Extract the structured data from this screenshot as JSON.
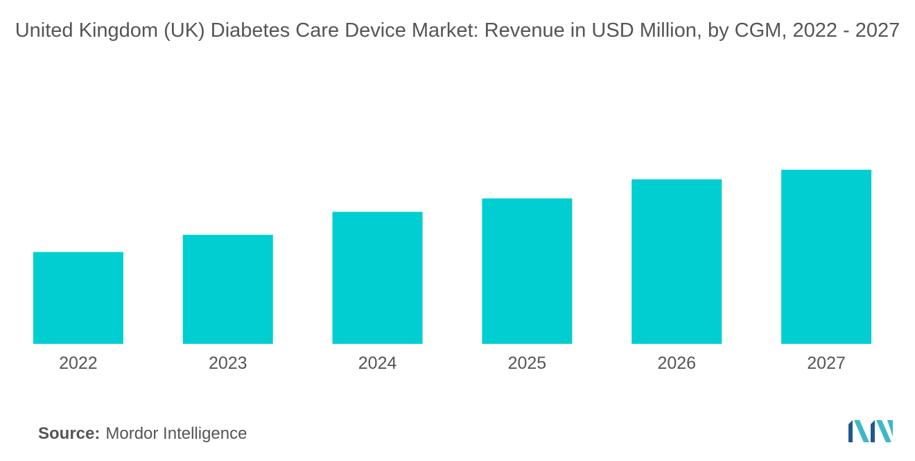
{
  "chart_data": {
    "type": "bar",
    "title": "United Kingdom (UK) Diabetes Care Device Market: Revenue in USD Million, by CGM, 2022 - 2027",
    "categories": [
      "2022",
      "2023",
      "2024",
      "2025",
      "2026",
      "2027"
    ],
    "values": [
      48,
      57,
      69,
      76,
      86,
      91
    ],
    "xlabel": "",
    "ylabel": "",
    "ylim": [
      0,
      100
    ],
    "grid": false,
    "legend": "none"
  },
  "colors": {
    "bar": "#00CED1",
    "text": "#555555",
    "logo_dark": "#1E5A8C",
    "logo_light": "#3FB8C4"
  },
  "source": {
    "label": "Source:",
    "value": "Mordor Intelligence"
  },
  "logo": {
    "icon": "mordor-intelligence-logo-icon"
  }
}
